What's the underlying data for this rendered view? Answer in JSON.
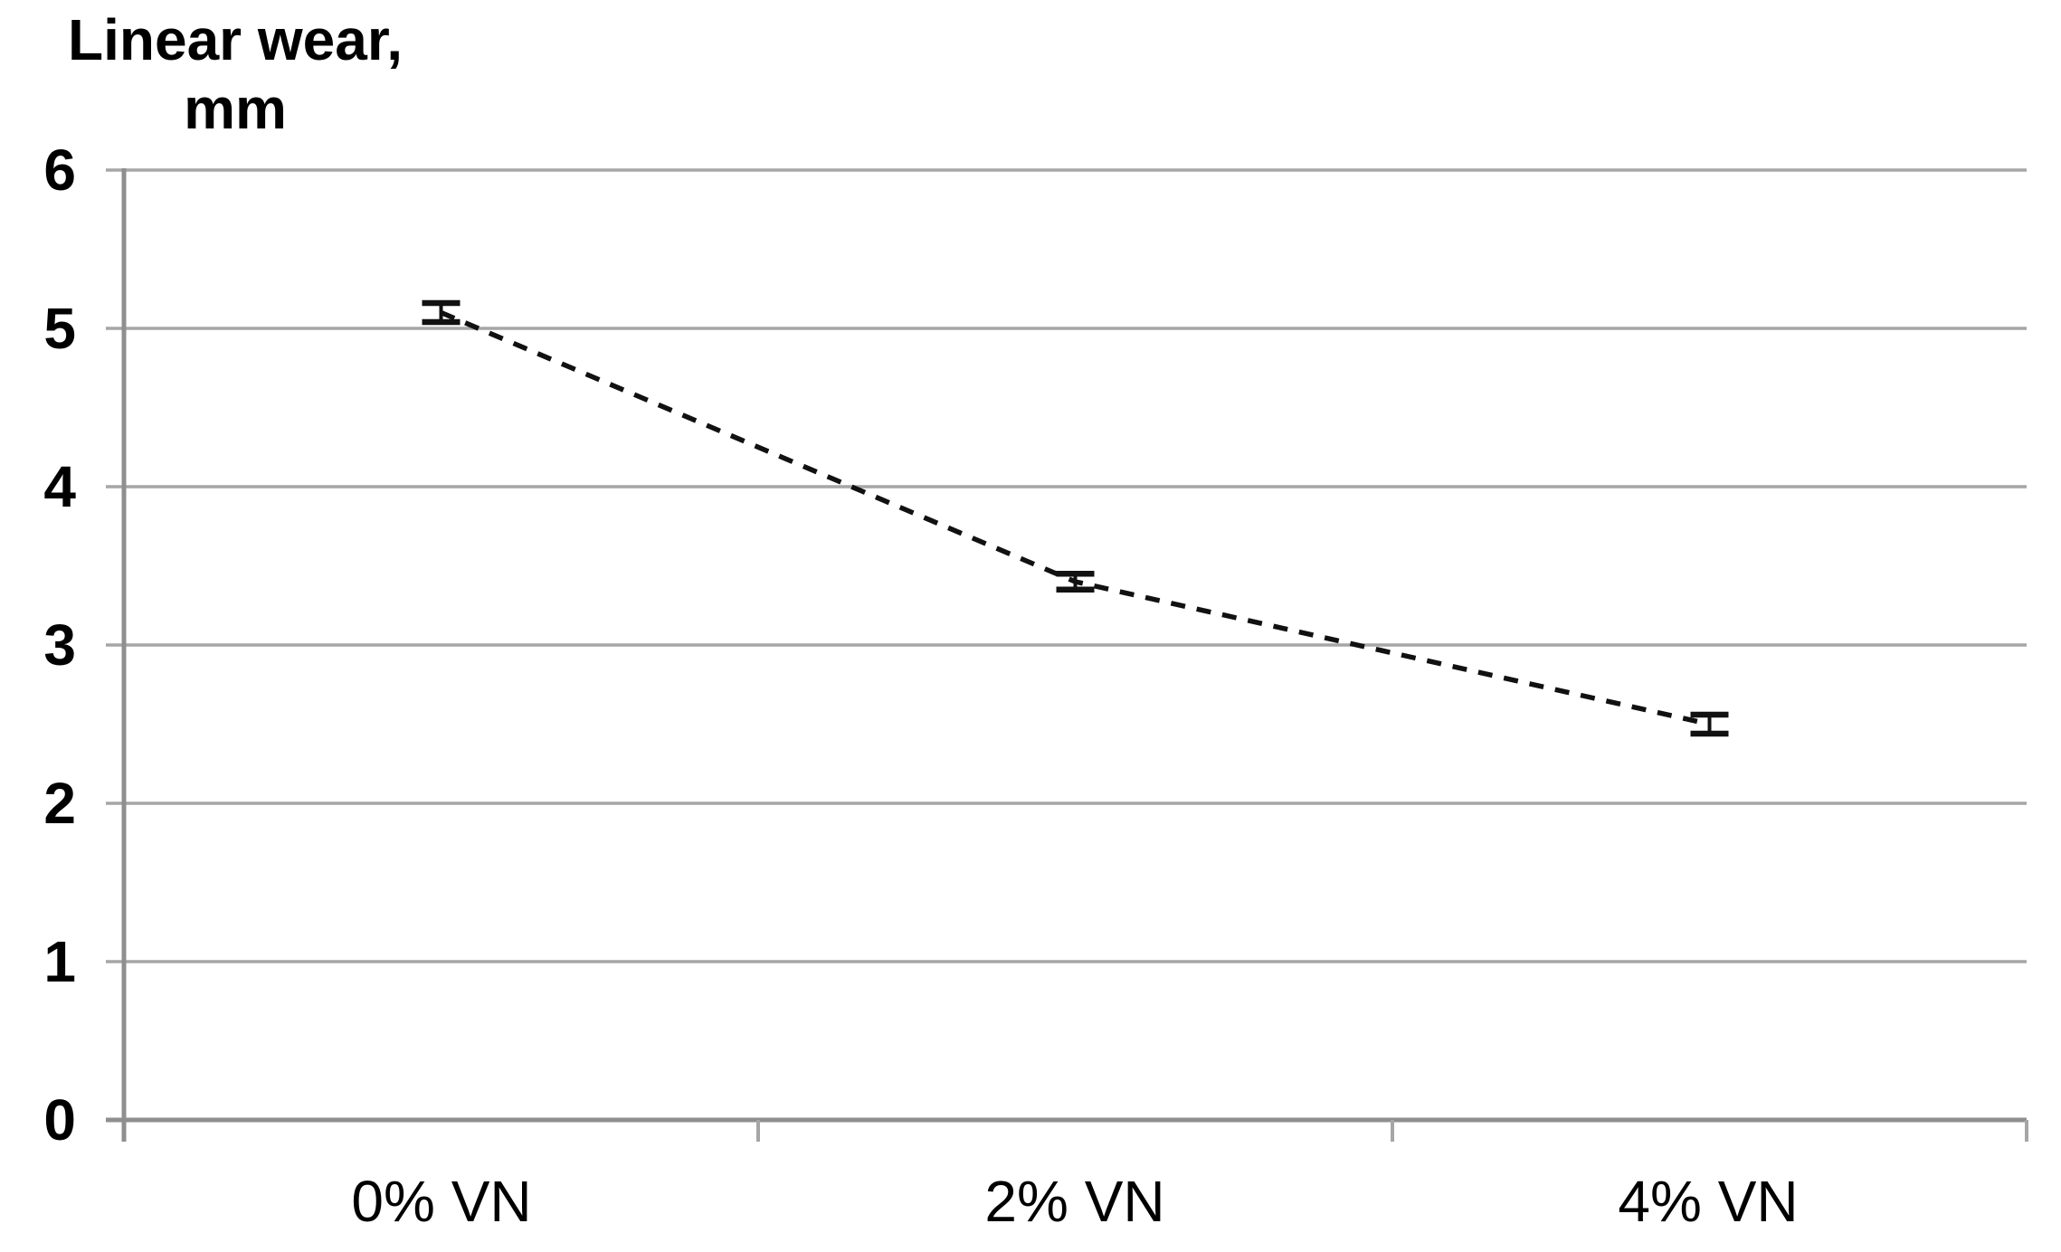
{
  "chart_data": {
    "type": "line",
    "title_lines": [
      "Linear wear,",
      "mm"
    ],
    "ylabel": "Linear wear, mm",
    "xlabel": "",
    "categories": [
      "0% VN",
      "2% VN",
      "4% VN"
    ],
    "series": [
      {
        "name": "Linear wear",
        "values": [
          5.1,
          3.4,
          2.5
        ],
        "errors": [
          0.06,
          0.05,
          0.06
        ]
      }
    ],
    "ylim": [
      0,
      6
    ],
    "yticks": [
      0,
      1,
      2,
      3,
      4,
      5,
      6
    ],
    "ytick_labels_top_to_bottom": [
      "6",
      "5",
      "4",
      "3",
      "2",
      "1",
      "0"
    ],
    "grid": true,
    "legend": false,
    "line_style": "dashed",
    "marker": "error-bar",
    "colors": {
      "line": "#111111",
      "grid": "#a6a6a6",
      "axis": "#8f8f8f",
      "text": "#000000",
      "background": "#ffffff"
    }
  }
}
